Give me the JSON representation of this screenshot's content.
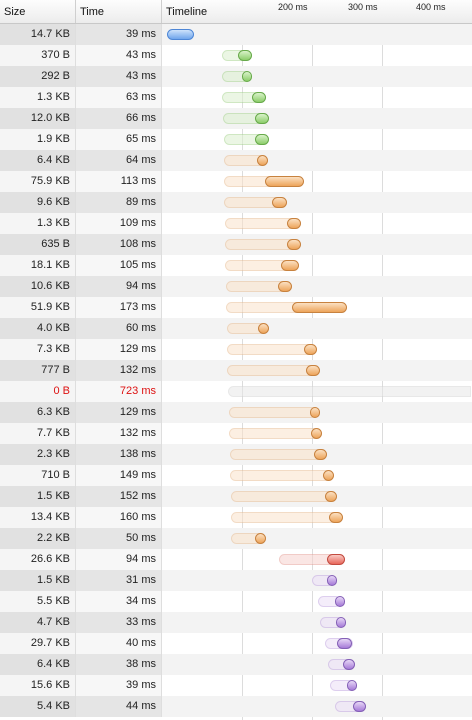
{
  "header": {
    "size_label": "Size",
    "time_label": "Time",
    "timeline_label": "Timeline",
    "ticks": [
      "200 ms",
      "300 ms",
      "400 ms"
    ]
  },
  "colors": {
    "blue": "#6fa5ec",
    "green": "#8ccd6a",
    "orange": "#eda45a",
    "red": "#e8675b",
    "purple": "#a67ad8",
    "gray": "#dcdcdc",
    "error_text": "#dd1111"
  },
  "requests": [
    {
      "size": "14.7 KB",
      "time": "39 ms",
      "start": 0,
      "latency": 0,
      "duration": 39,
      "color": "blue"
    },
    {
      "size": "370 B",
      "time": "43 ms",
      "start": 78,
      "latency": 23,
      "duration": 43,
      "color": "green"
    },
    {
      "size": "292 B",
      "time": "43 ms",
      "start": 78,
      "latency": 29,
      "duration": 43,
      "color": "green"
    },
    {
      "size": "1.3 KB",
      "time": "63 ms",
      "start": 79,
      "latency": 43,
      "duration": 63,
      "color": "green"
    },
    {
      "size": "12.0 KB",
      "time": "66 ms",
      "start": 80,
      "latency": 45,
      "duration": 66,
      "color": "green"
    },
    {
      "size": "1.9 KB",
      "time": "65 ms",
      "start": 81,
      "latency": 45,
      "duration": 65,
      "color": "green"
    },
    {
      "size": "6.4 KB",
      "time": "64 ms",
      "start": 81,
      "latency": 47,
      "duration": 64,
      "color": "orange"
    },
    {
      "size": "75.9 KB",
      "time": "113 ms",
      "start": 82,
      "latency": 58,
      "duration": 113,
      "color": "orange"
    },
    {
      "size": "9.6 KB",
      "time": "89 ms",
      "start": 82,
      "latency": 68,
      "duration": 89,
      "color": "orange"
    },
    {
      "size": "1.3 KB",
      "time": "109 ms",
      "start": 83,
      "latency": 88,
      "duration": 109,
      "color": "orange"
    },
    {
      "size": "635 B",
      "time": "108 ms",
      "start": 83,
      "latency": 88,
      "duration": 108,
      "color": "orange"
    },
    {
      "size": "18.1 KB",
      "time": "105 ms",
      "start": 83,
      "latency": 80,
      "duration": 105,
      "color": "orange"
    },
    {
      "size": "10.6 KB",
      "time": "94 ms",
      "start": 84,
      "latency": 75,
      "duration": 94,
      "color": "orange"
    },
    {
      "size": "51.9 KB",
      "time": "173 ms",
      "start": 84,
      "latency": 95,
      "duration": 173,
      "color": "orange"
    },
    {
      "size": "4.0 KB",
      "time": "60 ms",
      "start": 85,
      "latency": 45,
      "duration": 60,
      "color": "orange"
    },
    {
      "size": "7.3 KB",
      "time": "129 ms",
      "start": 86,
      "latency": 110,
      "duration": 129,
      "color": "orange"
    },
    {
      "size": "777 B",
      "time": "132 ms",
      "start": 86,
      "latency": 112,
      "duration": 132,
      "color": "orange"
    },
    {
      "size": "0 B",
      "time": "723 ms",
      "start": 87,
      "latency": 0,
      "duration": 723,
      "color": "gray",
      "error": true
    },
    {
      "size": "6.3 KB",
      "time": "129 ms",
      "start": 89,
      "latency": 115,
      "duration": 129,
      "color": "orange"
    },
    {
      "size": "7.7 KB",
      "time": "132 ms",
      "start": 89,
      "latency": 117,
      "duration": 132,
      "color": "orange"
    },
    {
      "size": "2.3 KB",
      "time": "138 ms",
      "start": 90,
      "latency": 120,
      "duration": 138,
      "color": "orange"
    },
    {
      "size": "710 B",
      "time": "149 ms",
      "start": 90,
      "latency": 133,
      "duration": 149,
      "color": "orange"
    },
    {
      "size": "1.5 KB",
      "time": "152 ms",
      "start": 91,
      "latency": 135,
      "duration": 152,
      "color": "orange"
    },
    {
      "size": "13.4 KB",
      "time": "160 ms",
      "start": 91,
      "latency": 140,
      "duration": 160,
      "color": "orange"
    },
    {
      "size": "2.2 KB",
      "time": "50 ms",
      "start": 91,
      "latency": 35,
      "duration": 50,
      "color": "orange"
    },
    {
      "size": "26.6 KB",
      "time": "94 ms",
      "start": 160,
      "latency": 68,
      "duration": 94,
      "color": "red"
    },
    {
      "size": "1.5 KB",
      "time": "31 ms",
      "start": 207,
      "latency": 22,
      "duration": 31,
      "color": "purple"
    },
    {
      "size": "5.5 KB",
      "time": "34 ms",
      "start": 215,
      "latency": 25,
      "duration": 34,
      "color": "purple"
    },
    {
      "size": "4.7 KB",
      "time": "33 ms",
      "start": 218,
      "latency": 23,
      "duration": 33,
      "color": "purple"
    },
    {
      "size": "29.7 KB",
      "time": "40 ms",
      "start": 225,
      "latency": 18,
      "duration": 40,
      "color": "purple"
    },
    {
      "size": "6.4 KB",
      "time": "38 ms",
      "start": 230,
      "latency": 22,
      "duration": 38,
      "color": "purple"
    },
    {
      "size": "15.6 KB",
      "time": "39 ms",
      "start": 233,
      "latency": 24,
      "duration": 39,
      "color": "purple"
    },
    {
      "size": "5.4 KB",
      "time": "44 ms",
      "start": 240,
      "latency": 25,
      "duration": 44,
      "color": "purple"
    }
  ]
}
